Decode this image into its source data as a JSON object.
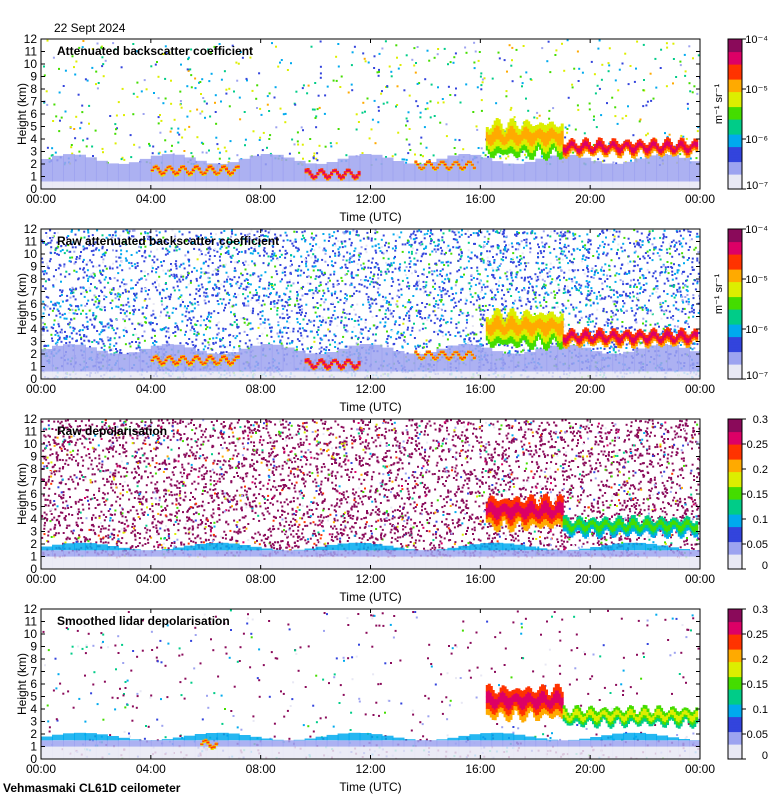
{
  "date_label": "22 Sept 2024",
  "footer_label": "Vehmasmaki CL61D ceilometer",
  "colors": {
    "scale": [
      "#e8e8f4",
      "#9da3f0",
      "#3344dd",
      "#00aaee",
      "#00cc88",
      "#44dd00",
      "#ddee00",
      "#ffaa00",
      "#ff3300",
      "#dd0066",
      "#8a0a5a"
    ]
  },
  "chart_data": [
    {
      "type": "heatmap",
      "title": "Attenuated backscatter coefficient",
      "xlabel": "Time (UTC)",
      "ylabel": "Height (km)",
      "x_ticks": [
        "00:00",
        "04:00",
        "08:00",
        "12:00",
        "16:00",
        "20:00",
        "00:00"
      ],
      "y_ticks": [
        "0",
        "1",
        "2",
        "3",
        "4",
        "5",
        "6",
        "7",
        "8",
        "9",
        "10",
        "11",
        "12"
      ],
      "xlim": [
        0,
        24
      ],
      "ylim": [
        0,
        12
      ],
      "colorbar": {
        "scale": "log",
        "ticks": [
          "10⁻⁷",
          "10⁻⁶",
          "10⁻⁵",
          "10⁻⁴"
        ],
        "label": "m⁻¹ sr⁻¹"
      },
      "clouds": [
        {
          "t0": 4.0,
          "t1": 7.2,
          "h": 1.5,
          "thick": 0.35,
          "level": 0.85
        },
        {
          "t0": 9.6,
          "t1": 11.6,
          "h": 1.2,
          "thick": 0.4,
          "level": 0.9
        },
        {
          "t0": 13.6,
          "t1": 15.8,
          "h": 1.9,
          "thick": 0.25,
          "level": 0.85
        },
        {
          "t0": 16.2,
          "t1": 19.0,
          "h": 4.0,
          "thick": 2.8,
          "level": 0.75
        },
        {
          "t0": 19.0,
          "t1": 23.9,
          "h": 3.3,
          "thick": 1.1,
          "level": 0.95
        }
      ]
    },
    {
      "type": "heatmap",
      "title": "Raw attenuated backscatter coefficient",
      "xlabel": "Time (UTC)",
      "ylabel": "Height (km)",
      "x_ticks": [
        "00:00",
        "04:00",
        "08:00",
        "12:00",
        "16:00",
        "20:00",
        "00:00"
      ],
      "y_ticks": [
        "0",
        "1",
        "2",
        "3",
        "4",
        "5",
        "6",
        "7",
        "8",
        "9",
        "10",
        "11",
        "12"
      ],
      "xlim": [
        0,
        24
      ],
      "ylim": [
        0,
        12
      ],
      "colorbar": {
        "scale": "log",
        "ticks": [
          "10⁻⁷",
          "10⁻⁶",
          "10⁻⁵",
          "10⁻⁴"
        ],
        "label": "m⁻¹ sr⁻¹"
      },
      "clouds": [
        {
          "t0": 4.0,
          "t1": 7.2,
          "h": 1.5,
          "thick": 0.35,
          "level": 0.85
        },
        {
          "t0": 9.6,
          "t1": 11.6,
          "h": 1.2,
          "thick": 0.4,
          "level": 0.9
        },
        {
          "t0": 13.6,
          "t1": 15.8,
          "h": 1.9,
          "thick": 0.25,
          "level": 0.85
        },
        {
          "t0": 16.2,
          "t1": 19.0,
          "h": 4.0,
          "thick": 2.8,
          "level": 0.75
        },
        {
          "t0": 19.0,
          "t1": 23.9,
          "h": 3.3,
          "thick": 1.1,
          "level": 0.95
        }
      ]
    },
    {
      "type": "heatmap",
      "title": "Raw depolarisation",
      "xlabel": "Time (UTC)",
      "ylabel": "Height (km)",
      "x_ticks": [
        "00:00",
        "04:00",
        "08:00",
        "12:00",
        "16:00",
        "20:00",
        "00:00"
      ],
      "y_ticks": [
        "0",
        "1",
        "2",
        "3",
        "4",
        "5",
        "6",
        "7",
        "8",
        "9",
        "10",
        "11",
        "12"
      ],
      "xlim": [
        0,
        24
      ],
      "ylim": [
        0,
        12
      ],
      "colorbar": {
        "scale": "linear",
        "ticks": [
          "0",
          "0.05",
          "0.1",
          "0.15",
          "0.2",
          "0.25",
          "0.3"
        ],
        "label": ""
      },
      "clouds": [
        {
          "t0": 16.2,
          "t1": 19.0,
          "h": 4.5,
          "thick": 2.5,
          "level": 0.95
        },
        {
          "t0": 19.0,
          "t1": 23.9,
          "h": 3.4,
          "thick": 1.3,
          "level": 0.55
        }
      ]
    },
    {
      "type": "heatmap",
      "title": "Smoothed lidar depolarisation",
      "xlabel": "Time (UTC)",
      "ylabel": "Height (km)",
      "x_ticks": [
        "00:00",
        "04:00",
        "08:00",
        "12:00",
        "16:00",
        "20:00",
        "00:00"
      ],
      "y_ticks": [
        "0",
        "1",
        "2",
        "3",
        "4",
        "5",
        "6",
        "7",
        "8",
        "9",
        "10",
        "11",
        "12"
      ],
      "xlim": [
        0,
        24
      ],
      "ylim": [
        0,
        12
      ],
      "colorbar": {
        "scale": "linear",
        "ticks": [
          "0",
          "0.05",
          "0.1",
          "0.15",
          "0.2",
          "0.25",
          "0.3"
        ],
        "label": ""
      },
      "clouds": [
        {
          "t0": 5.8,
          "t1": 6.4,
          "h": 1.2,
          "thick": 0.3,
          "level": 0.85
        },
        {
          "t0": 16.2,
          "t1": 19.0,
          "h": 4.5,
          "thick": 2.5,
          "level": 0.95
        },
        {
          "t0": 19.0,
          "t1": 23.9,
          "h": 3.4,
          "thick": 1.3,
          "level": 0.6
        }
      ]
    }
  ]
}
